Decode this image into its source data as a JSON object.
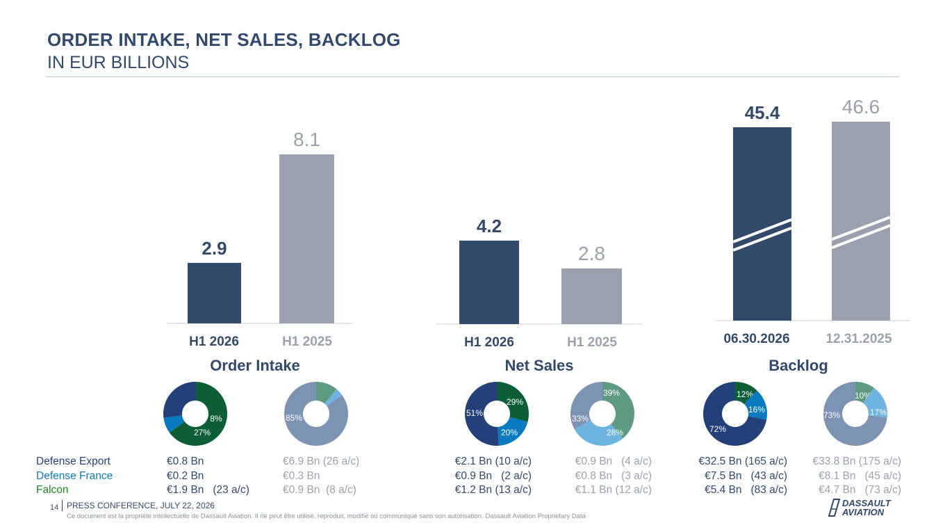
{
  "header": {
    "title": "ORDER INTAKE, NET SALES, BACKLOG",
    "subtitle": "IN EUR BILLIONS"
  },
  "colors": {
    "current": "#314a69",
    "previous": "#9aa0ae",
    "defense_export": "#23407a",
    "defense_france": "#0a7ac0",
    "falcon": "#0c5e35"
  },
  "chart_data": [
    {
      "type": "bar",
      "title": "Order Intake",
      "categories": [
        "H1 2026",
        "H1 2025"
      ],
      "values": [
        2.9,
        8.1
      ],
      "value_labels": [
        "2.9",
        "8.1"
      ],
      "ylim": [
        0,
        8.1
      ]
    },
    {
      "type": "bar",
      "title": "Net Sales",
      "categories": [
        "H1 2026",
        "H1 2025"
      ],
      "values": [
        4.2,
        2.8
      ],
      "value_labels": [
        "4.2",
        "2.8"
      ],
      "ylim": [
        0,
        4.2
      ]
    },
    {
      "type": "bar",
      "title": "Backlog",
      "categories": [
        "06.30.2026",
        "12.31.2025"
      ],
      "values": [
        45.4,
        46.6
      ],
      "value_labels": [
        "45.4",
        "46.6"
      ],
      "axis_break": true
    },
    {
      "type": "pie",
      "group": "Order Intake",
      "period": "H1 2026",
      "slices": [
        {
          "label": "65%",
          "value": 65,
          "color": "#0c5e35"
        },
        {
          "label": "8%",
          "value": 8,
          "color": "#0a7ac0"
        },
        {
          "label": "27%",
          "value": 27,
          "color": "#23407a"
        }
      ]
    },
    {
      "type": "pie",
      "group": "Order Intake",
      "period": "H1 2025",
      "slices": [
        {
          "label": "11%",
          "value": 11,
          "color": "#5e9a82"
        },
        {
          "label": "4%",
          "value": 4,
          "color": "#6db4e0"
        },
        {
          "label": "85%",
          "value": 85,
          "color": "#7d93b4"
        }
      ]
    },
    {
      "type": "pie",
      "group": "Net Sales",
      "period": "H1 2026",
      "slices": [
        {
          "label": "29%",
          "value": 29,
          "color": "#0c5e35"
        },
        {
          "label": "20%",
          "value": 20,
          "color": "#0a7ac0"
        },
        {
          "label": "51%",
          "value": 51,
          "color": "#23407a"
        }
      ]
    },
    {
      "type": "pie",
      "group": "Net Sales",
      "period": "H1 2025",
      "slices": [
        {
          "label": "39%",
          "value": 39,
          "color": "#5e9a82"
        },
        {
          "label": "28%",
          "value": 28,
          "color": "#6db4e0"
        },
        {
          "label": "33%",
          "value": 33,
          "color": "#7d93b4"
        }
      ]
    },
    {
      "type": "pie",
      "group": "Backlog",
      "period": "06.30.2026",
      "slices": [
        {
          "label": "12%",
          "value": 12,
          "color": "#0c5e35"
        },
        {
          "label": "16%",
          "value": 16,
          "color": "#0a7ac0"
        },
        {
          "label": "72%",
          "value": 72,
          "color": "#23407a"
        }
      ]
    },
    {
      "type": "pie",
      "group": "Backlog",
      "period": "12.31.2025",
      "slices": [
        {
          "label": "10%",
          "value": 10,
          "color": "#5e9a82"
        },
        {
          "label": "17%",
          "value": 17,
          "color": "#6db4e0"
        },
        {
          "label": "73%",
          "value": 73,
          "color": "#7d93b4"
        }
      ]
    }
  ],
  "breakdown": {
    "rows": [
      {
        "label": "Defense Export",
        "label_color": "#23407a",
        "cells": [
          "€0.8 Bn",
          "€6.9 Bn (26 a/c)",
          "€2.1 Bn (10 a/c)",
          "€0.9 Bn   (4 a/c)",
          "€32.5 Bn (165 a/c)",
          "€33.8 Bn (175 a/c)"
        ]
      },
      {
        "label": "Defense France",
        "label_color": "#0a7ac0",
        "cells": [
          "€0.2 Bn",
          "€0.3 Bn",
          "€0.9 Bn   (2 a/c)",
          "€0.8 Bn   (3 a/c)",
          "€7.5 Bn   (43 a/c)",
          "€8.1 Bn   (45 a/c)"
        ]
      },
      {
        "label": "Falcon",
        "label_color": "#1e8a1e",
        "cells": [
          "€1.9 Bn   (23 a/c)",
          "€0.9 Bn  (8 a/c)",
          "€1.2 Bn (13 a/c)",
          "€1.1 Bn (12 a/c)",
          "€5.4 Bn   (83 a/c)",
          "€4.7 Bn   (73 a/c)"
        ]
      }
    ]
  },
  "footer": {
    "page_number": "14",
    "text": "PRESS CONFERENCE, JULY 22, 2026",
    "note": "Ce document est la propriété intellectuelle de Dassault Aviation. Il ne peut être utilisé, reproduit, modifié ou communiqué sans son autorisation. Dassault Aviation Proprietary Data",
    "logo_line1": "DASSAULT",
    "logo_line2": "AVIATION"
  }
}
